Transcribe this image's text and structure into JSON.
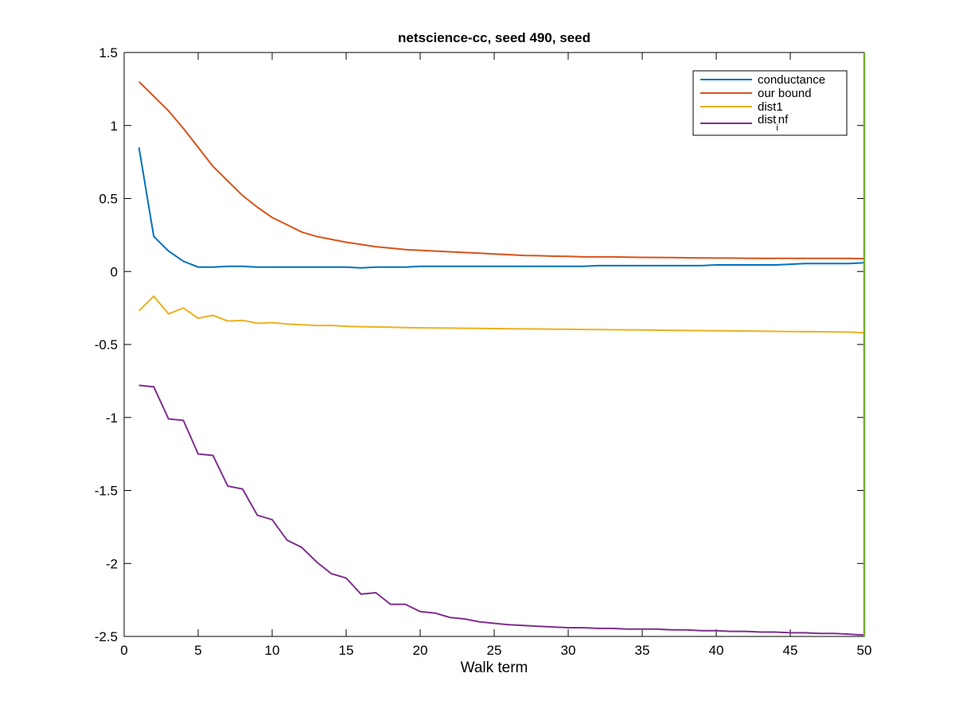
{
  "chart_data": {
    "type": "line",
    "title": "netscience-cc, seed 490, seed",
    "xlabel": "Walk term",
    "ylabel": "",
    "xlim": [
      0,
      50
    ],
    "ylim": [
      -2.5,
      1.5
    ],
    "xticks": [
      0,
      5,
      10,
      15,
      20,
      25,
      30,
      35,
      40,
      45,
      50
    ],
    "yticks": [
      -2.5,
      -2,
      -1.5,
      -1,
      -0.5,
      0,
      0.5,
      1,
      1.5
    ],
    "xtick_labels": [
      "0",
      "5",
      "10",
      "15",
      "20",
      "25",
      "30",
      "35",
      "40",
      "45",
      "50"
    ],
    "ytick_labels": [
      "-2.5",
      "-2",
      "-1.5",
      "-1",
      "-0.5",
      "0",
      "0.5",
      "1",
      "1.5"
    ],
    "grid": false,
    "legend_position": "top-right",
    "x": [
      1,
      2,
      3,
      4,
      5,
      6,
      7,
      8,
      9,
      10,
      11,
      12,
      13,
      14,
      15,
      16,
      17,
      18,
      19,
      20,
      21,
      22,
      23,
      24,
      25,
      26,
      27,
      28,
      29,
      30,
      31,
      32,
      33,
      34,
      35,
      36,
      37,
      38,
      39,
      40,
      41,
      42,
      43,
      44,
      45,
      46,
      47,
      48,
      49,
      50
    ],
    "series": [
      {
        "name": "conductance",
        "color": "#0072BD",
        "values": [
          0.85,
          0.24,
          0.14,
          0.07,
          0.03,
          0.03,
          0.035,
          0.035,
          0.03,
          0.03,
          0.03,
          0.03,
          0.03,
          0.03,
          0.03,
          0.025,
          0.03,
          0.03,
          0.03,
          0.035,
          0.035,
          0.035,
          0.035,
          0.035,
          0.035,
          0.035,
          0.035,
          0.035,
          0.035,
          0.035,
          0.035,
          0.04,
          0.04,
          0.04,
          0.04,
          0.04,
          0.04,
          0.04,
          0.04,
          0.045,
          0.045,
          0.045,
          0.045,
          0.045,
          0.05,
          0.055,
          0.055,
          0.055,
          0.055,
          0.06
        ]
      },
      {
        "name": "our bound",
        "color": "#D95319",
        "values": [
          1.3,
          1.2,
          1.1,
          0.98,
          0.85,
          0.72,
          0.62,
          0.52,
          0.44,
          0.37,
          0.32,
          0.27,
          0.24,
          0.22,
          0.2,
          0.185,
          0.17,
          0.16,
          0.15,
          0.145,
          0.14,
          0.135,
          0.13,
          0.125,
          0.12,
          0.115,
          0.11,
          0.108,
          0.105,
          0.103,
          0.1,
          0.1,
          0.1,
          0.098,
          0.097,
          0.096,
          0.095,
          0.094,
          0.093,
          0.092,
          0.092,
          0.091,
          0.09,
          0.09,
          0.09,
          0.09,
          0.09,
          0.09,
          0.089,
          0.088
        ]
      },
      {
        "name": "dist1",
        "color": "#EDB120",
        "values": [
          -0.27,
          -0.17,
          -0.29,
          -0.25,
          -0.32,
          -0.3,
          -0.34,
          -0.335,
          -0.355,
          -0.35,
          -0.36,
          -0.365,
          -0.37,
          -0.37,
          -0.375,
          -0.378,
          -0.38,
          -0.382,
          -0.384,
          -0.386,
          -0.387,
          -0.388,
          -0.389,
          -0.39,
          -0.391,
          -0.392,
          -0.393,
          -0.394,
          -0.395,
          -0.396,
          -0.397,
          -0.398,
          -0.399,
          -0.4,
          -0.401,
          -0.402,
          -0.403,
          -0.404,
          -0.405,
          -0.406,
          -0.407,
          -0.408,
          -0.409,
          -0.41,
          -0.411,
          -0.412,
          -0.413,
          -0.414,
          -0.415,
          -0.42
        ]
      },
      {
        "name": "dist_inf",
        "color": "#7E2F8E",
        "values": [
          -0.78,
          -0.79,
          -1.01,
          -1.02,
          -1.25,
          -1.26,
          -1.47,
          -1.49,
          -1.67,
          -1.7,
          -1.84,
          -1.89,
          -1.99,
          -2.07,
          -2.1,
          -2.21,
          -2.2,
          -2.28,
          -2.28,
          -2.33,
          -2.34,
          -2.37,
          -2.38,
          -2.4,
          -2.41,
          -2.42,
          -2.425,
          -2.43,
          -2.435,
          -2.44,
          -2.44,
          -2.445,
          -2.445,
          -2.45,
          -2.45,
          -2.45,
          -2.455,
          -2.455,
          -2.46,
          -2.46,
          -2.465,
          -2.465,
          -2.47,
          -2.47,
          -2.475,
          -2.475,
          -2.48,
          -2.48,
          -2.485,
          -2.49
        ]
      }
    ],
    "legend": {
      "entries": [
        {
          "label": "conductance",
          "color": "#0072BD"
        },
        {
          "label": "our bound",
          "color": "#D95319"
        },
        {
          "label": "dist1",
          "color": "#EDB120"
        },
        {
          "label_main": "dist",
          "label_sub": "i",
          "label_tail": "nf",
          "color": "#7E2F8E"
        }
      ]
    },
    "right_edge_line_color": "#77AC30"
  }
}
